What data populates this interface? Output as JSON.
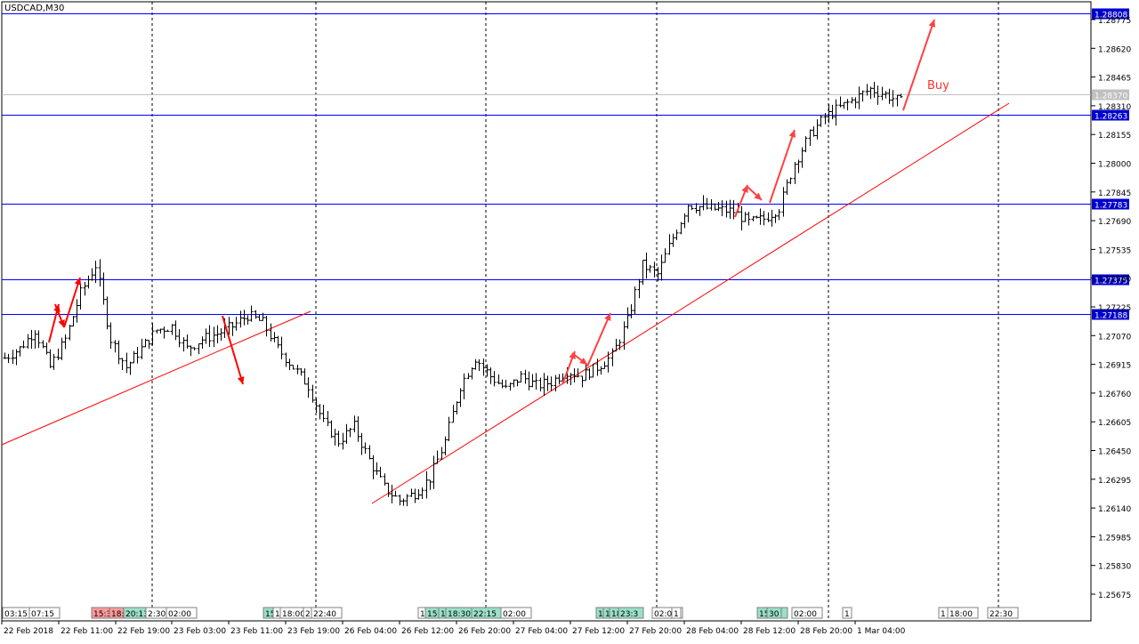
{
  "window": {
    "title": "USDCAD,M30"
  },
  "colors": {
    "background": "#ffffff",
    "candles": "#000000",
    "horizontal_levels": "#0000ff",
    "level_label_bg": "#0000cc",
    "current_price_line": "#c0c0c0",
    "current_price_label_bg": "#c0c0c0",
    "trendline": "#ff0000",
    "drawn_arrows": "#ff0000",
    "annotation_arrows": "#ff4040",
    "event_marker_red": "#ff9999",
    "event_marker_green": "#99e0c8"
  },
  "chart_data": {
    "type": "candlestick",
    "symbol": "USDCAD",
    "timeframe": "M30",
    "ylim": [
      1.256,
      1.2893
    ],
    "price_ticks": [
      "1.28775",
      "1.28620",
      "1.28465",
      "1.28310",
      "1.28155",
      "1.28000",
      "1.27845",
      "1.27690",
      "1.27535",
      "1.27380",
      "1.27225",
      "1.27070",
      "1.26915",
      "1.26760",
      "1.26605",
      "1.26450",
      "1.26295",
      "1.26140",
      "1.25985",
      "1.25830",
      "1.25675"
    ],
    "time_ticks": [
      "22 Feb 2018",
      "22 Feb 11:00",
      "22 Feb 19:00",
      "23 Feb 03:00",
      "23 Feb 11:00",
      "23 Feb 19:00",
      "26 Feb 04:00",
      "26 Feb 12:00",
      "26 Feb 20:00",
      "27 Feb 04:00",
      "27 Feb 12:00",
      "27 Feb 20:00",
      "28 Feb 04:00",
      "28 Feb 12:00",
      "28 Feb 20:00",
      "1 Mar 04:00"
    ],
    "horizontal_levels": [
      {
        "price": 1.28808,
        "label": "1.28808"
      },
      {
        "price": 1.28263,
        "label": "1.28263"
      },
      {
        "price": 1.27783,
        "label": "1.27783"
      },
      {
        "price": 1.27375,
        "label": "1.27375"
      },
      {
        "price": 1.27188,
        "label": "1.27188"
      }
    ],
    "current_price": {
      "price": 1.2837,
      "label": "1.28370"
    },
    "annotation_text": "Buy",
    "event_markers": [
      "03:15",
      "07:15",
      "15:3",
      "18:",
      "20:13",
      "2:30",
      "02:00",
      "15",
      "1",
      "18:00",
      "2",
      "22:40",
      "1",
      "15",
      "1",
      "18:30",
      "22:15",
      "02:00",
      "1",
      "17",
      "18:30",
      "23:3",
      "02:00",
      "1",
      "15:30",
      "30",
      "02:00",
      "1",
      "1",
      "18:00",
      "22:30"
    ],
    "approx_close_path": [
      1.2695,
      1.27,
      1.271,
      1.269,
      1.2705,
      1.273,
      1.2745,
      1.2705,
      1.269,
      1.27,
      1.271,
      1.2712,
      1.27,
      1.2705,
      1.2708,
      1.2712,
      1.2718,
      1.2714,
      1.27,
      1.269,
      1.268,
      1.266,
      1.265,
      1.2658,
      1.264,
      1.2625,
      1.2618,
      1.2622,
      1.263,
      1.265,
      1.268,
      1.2695,
      1.2685,
      1.2678,
      1.2685,
      1.268,
      1.2682,
      1.2688,
      1.2685,
      1.269,
      1.2696,
      1.2715,
      1.2745,
      1.274,
      1.276,
      1.2778,
      1.2776,
      1.2775,
      1.2774,
      1.2768,
      1.277,
      1.2776,
      1.28,
      1.2815,
      1.2825,
      1.283,
      1.2835,
      1.284,
      1.2837,
      1.2833
    ]
  }
}
